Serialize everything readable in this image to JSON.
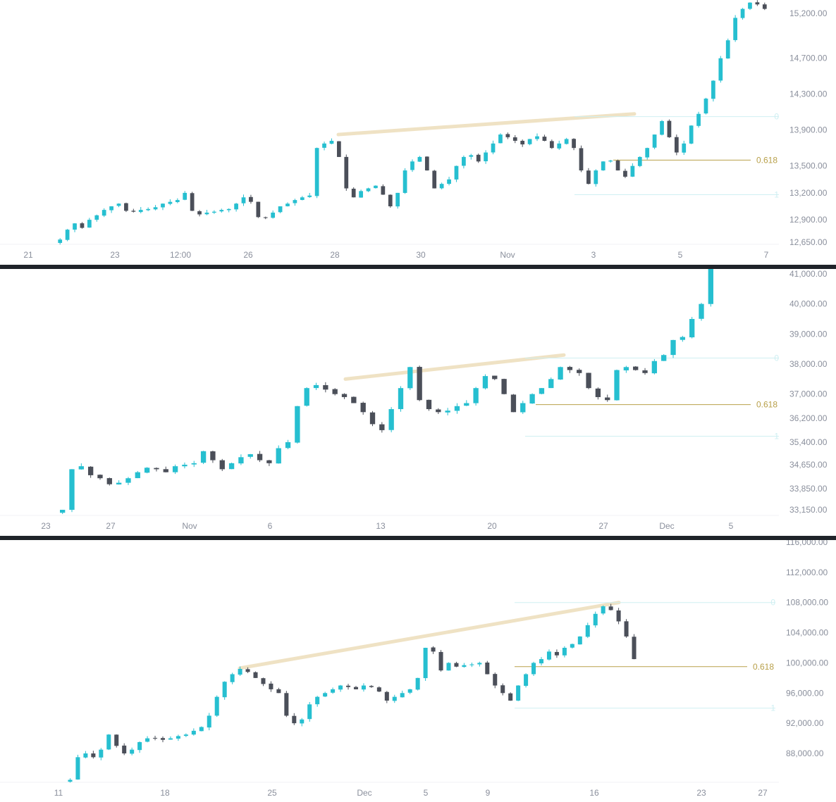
{
  "colors": {
    "up": "#26bfd0",
    "down": "#4b4f59",
    "trend": "#efe2c4",
    "fib_618": "#b8a04a",
    "fib_edge": "#cfeff2",
    "axis_text": "#8a8f9c",
    "divider": "#1f2329"
  },
  "chart_data": [
    {
      "type": "candlestick",
      "title": "",
      "xlabel": "",
      "ylabel": "",
      "ylim": [
        12650,
        15350
      ],
      "y_ticks": [
        "15,200.00",
        "14,700.00",
        "14,300.00",
        "13,900.00",
        "13,500.00",
        "13,200.00",
        "12,900.00",
        "12,650.00"
      ],
      "y_tick_values": [
        15200,
        14700,
        14300,
        13900,
        13500,
        13200,
        12900,
        12650
      ],
      "x_ticks": [
        "21",
        "23",
        "12:00",
        "26",
        "28",
        "30",
        "Nov",
        "3",
        "5",
        "7"
      ],
      "trendline": {
        "from": [
          13850,
          13850
        ],
        "to": [
          14080,
          14080
        ]
      },
      "fib": {
        "level_0": 14050,
        "level_618": 13565,
        "level_1": 13180,
        "labels": {
          "zero": "0",
          "618": "0.618",
          "one": "1"
        }
      },
      "path": [
        12680,
        12790,
        12860,
        12810,
        12900,
        12950,
        13010,
        13050,
        13080,
        13000,
        12990,
        13010,
        13020,
        13040,
        13080,
        13100,
        13120,
        13200,
        13000,
        12960,
        12980,
        12990,
        13010,
        13020,
        13080,
        13150,
        13100,
        12930,
        12920,
        12980,
        13050,
        13080,
        13120,
        13150,
        13170,
        13700,
        13750,
        13780,
        13600,
        13250,
        13150,
        13220,
        13250,
        13280,
        13180,
        13050,
        13200,
        13450,
        13550,
        13600,
        13450,
        13250,
        13300,
        13350,
        13500,
        13600,
        13620,
        13550,
        13650,
        13750,
        13850,
        13820,
        13780,
        13740,
        13800,
        13830,
        13780,
        13700,
        13750,
        13800,
        13700,
        13450,
        13300,
        13450,
        13550,
        13560,
        13450,
        13380,
        13500,
        13600,
        13700,
        13850,
        14000,
        13820,
        13650,
        13750,
        13950,
        14080,
        14250,
        14450,
        14700,
        14900,
        15150,
        15250,
        15320,
        15300,
        15250
      ],
      "note_path": "approximate close path read from chart"
    },
    {
      "type": "candlestick",
      "title": "",
      "xlabel": "",
      "ylabel": "",
      "ylim": [
        32900,
        41200
      ],
      "y_ticks": [
        "41,000.00",
        "40,000.00",
        "39,000.00",
        "38,000.00",
        "37,000.00",
        "36,200.00",
        "35,400.00",
        "34,650.00",
        "33,850.00",
        "33,150.00"
      ],
      "y_tick_values": [
        41000,
        40000,
        39000,
        38000,
        37000,
        36200,
        35400,
        34650,
        33850,
        33150
      ],
      "x_ticks": [
        "23",
        "27",
        "Nov",
        "6",
        "13",
        "20",
        "27",
        "Dec",
        "5"
      ],
      "trendline": {
        "from": [
          37500,
          37500
        ],
        "to": [
          38300,
          38300
        ]
      },
      "fib": {
        "level_0": 38200,
        "level_618": 36650,
        "level_1": 35600,
        "labels": {
          "zero": "0",
          "618": "0.618",
          "one": "1"
        }
      },
      "path": [
        33150,
        34500,
        34600,
        34300,
        34200,
        34000,
        34050,
        34200,
        34400,
        34550,
        34500,
        34400,
        34600,
        34650,
        34700,
        35100,
        34800,
        34500,
        34700,
        34900,
        35000,
        34800,
        34700,
        35200,
        35400,
        36600,
        37200,
        37300,
        37150,
        37000,
        36900,
        36700,
        36400,
        36000,
        35800,
        36500,
        37200,
        37900,
        36800,
        36500,
        36400,
        36450,
        36600,
        36700,
        37200,
        37600,
        37500,
        37000,
        36400,
        36700,
        37000,
        37200,
        37500,
        37900,
        37800,
        37700,
        37200,
        36900,
        36800,
        37800,
        37900,
        37800,
        37700,
        38100,
        38300,
        38800,
        38900,
        39500,
        40000,
        41200
      ],
      "note_path": "approximate close path read from chart"
    },
    {
      "type": "candlestick",
      "title": "",
      "xlabel": "",
      "ylabel": "",
      "ylim": [
        84000,
        116000
      ],
      "y_ticks": [
        "116,000.00",
        "112,000.00",
        "108,000.00",
        "104,000.00",
        "100,000.00",
        "96,000.00",
        "92,000.00",
        "88,000.00"
      ],
      "y_tick_values": [
        116000,
        112000,
        108000,
        104000,
        100000,
        96000,
        92000,
        88000
      ],
      "x_ticks": [
        "11",
        "18",
        "25",
        "Dec",
        "5",
        "9",
        "16",
        "23",
        "27"
      ],
      "trendline": {
        "from": [
          99300,
          99300
        ],
        "to": [
          108000,
          108000
        ]
      },
      "fib": {
        "level_0": 108000,
        "level_618": 99500,
        "level_1": 94000,
        "labels": {
          "zero": "0",
          "618": "0.618",
          "one": "1"
        }
      },
      "path": [
        84500,
        87500,
        88000,
        87500,
        88500,
        90500,
        89000,
        88000,
        88500,
        89500,
        90000,
        90000,
        89800,
        90000,
        90300,
        90500,
        91000,
        91500,
        93000,
        95500,
        97500,
        98500,
        99200,
        98800,
        98000,
        97200,
        96500,
        96000,
        93000,
        92000,
        92500,
        94500,
        95500,
        96000,
        96500,
        97000,
        96800,
        96500,
        97000,
        96800,
        96200,
        95000,
        95500,
        96000,
        96500,
        98000,
        102000,
        101500,
        99000,
        100000,
        99500,
        99700,
        99800,
        100000,
        98500,
        97000,
        96000,
        95000,
        97000,
        98500,
        100000,
        100500,
        101500,
        101000,
        102000,
        102500,
        103500,
        105000,
        106500,
        107500,
        107000,
        105500,
        103500,
        100500
      ],
      "note_path": "approximate close path read from chart"
    }
  ]
}
